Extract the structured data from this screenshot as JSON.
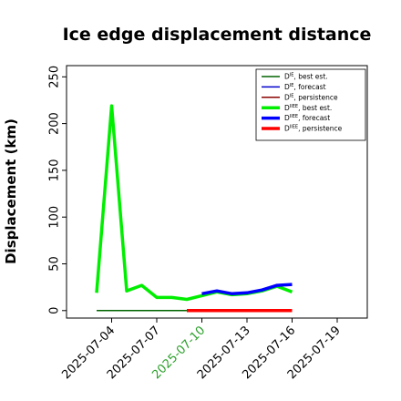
{
  "chart_data": {
    "type": "line",
    "title": "Ice edge displacement distance",
    "xlabel": "",
    "ylabel": "Displacement (km)",
    "ylim": [
      -8,
      262
    ],
    "xlim": [
      "2025-07-01",
      "2025-07-21"
    ],
    "yticks": [
      0,
      50,
      100,
      150,
      200,
      250
    ],
    "xticks": [
      {
        "label": "2025-07-04",
        "date": "2025-07-04",
        "color": "#000000"
      },
      {
        "label": "2025-07-07",
        "date": "2025-07-07",
        "color": "#000000"
      },
      {
        "label": "2025-07-10",
        "date": "2025-07-10",
        "color": "#2ca02c"
      },
      {
        "label": "2025-07-13",
        "date": "2025-07-13",
        "color": "#000000"
      },
      {
        "label": "2025-07-16",
        "date": "2025-07-16",
        "color": "#000000"
      },
      {
        "label": "2025-07-19",
        "date": "2025-07-19",
        "color": "#000000"
      }
    ],
    "grid": false,
    "legend_position": "top-right",
    "series": [
      {
        "legend_main": "D",
        "legend_sup": "IE",
        "legend_rest": ", best est.",
        "color": "#006400",
        "width": 1.5,
        "x": [
          "2025-07-03",
          "2025-07-09"
        ],
        "y": [
          0,
          0
        ]
      },
      {
        "legend_main": "D",
        "legend_sup": "IE",
        "legend_rest": ", forecast",
        "color": "#0000cd",
        "width": 1.5,
        "x": [],
        "y": []
      },
      {
        "legend_main": "D",
        "legend_sup": "IE",
        "legend_rest": ", persistence",
        "color": "#8b0000",
        "width": 1.5,
        "x": [],
        "y": []
      },
      {
        "legend_main": "D",
        "legend_sup": "IIEE",
        "legend_rest": ", best est.",
        "color": "#00ee00",
        "width": 3.5,
        "x": [
          "2025-07-03",
          "2025-07-04",
          "2025-07-05",
          "2025-07-06",
          "2025-07-07",
          "2025-07-08",
          "2025-07-09",
          "2025-07-10",
          "2025-07-11",
          "2025-07-12",
          "2025-07-13",
          "2025-07-14",
          "2025-07-15",
          "2025-07-16"
        ],
        "y": [
          19,
          219,
          21,
          27,
          14,
          14,
          12,
          16,
          20,
          17,
          18,
          21,
          26,
          20
        ]
      },
      {
        "legend_main": "D",
        "legend_sup": "IIEE",
        "legend_rest": ", forecast",
        "color": "#0000ff",
        "width": 3.5,
        "x": [
          "2025-07-10",
          "2025-07-11",
          "2025-07-12",
          "2025-07-13",
          "2025-07-14",
          "2025-07-15",
          "2025-07-16"
        ],
        "y": [
          18,
          21,
          18,
          19,
          22,
          27,
          28
        ]
      },
      {
        "legend_main": "D",
        "legend_sup": "IIEE",
        "legend_rest": ", persistence",
        "color": "#ff0000",
        "width": 3.5,
        "x": [
          "2025-07-09",
          "2025-07-16"
        ],
        "y": [
          0,
          0
        ]
      }
    ]
  }
}
